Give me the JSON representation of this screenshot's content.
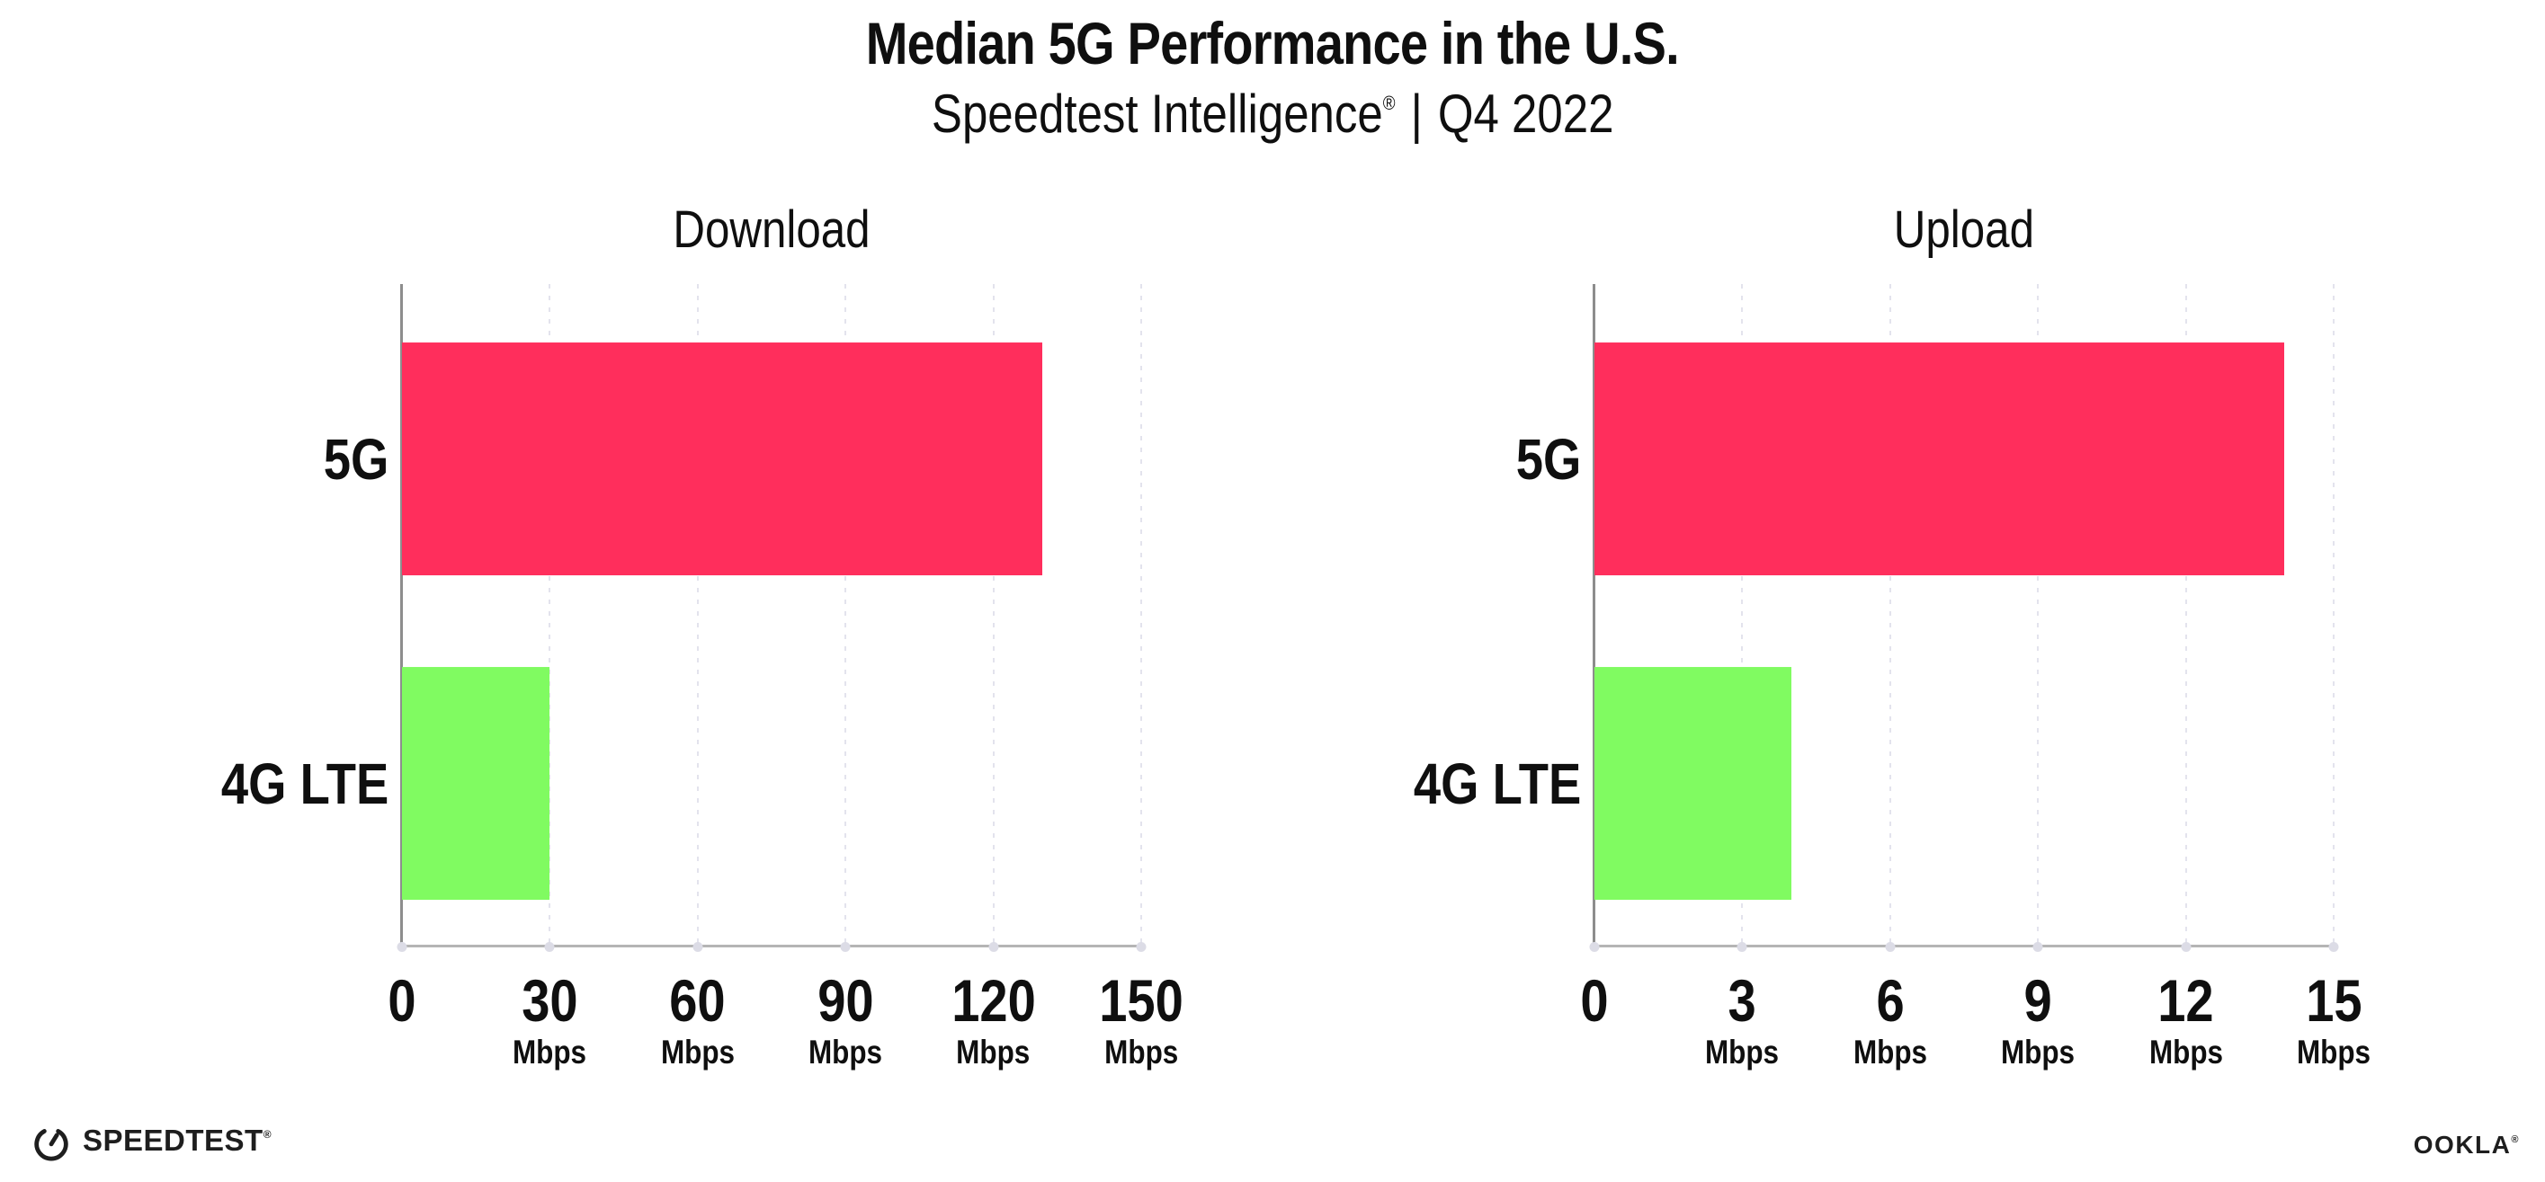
{
  "header": {
    "title": "Median 5G Performance in the U.S.",
    "subtitle": {
      "brand": "Speedtest Intelligence",
      "registered": "®",
      "separator": "|",
      "period": "Q4 2022"
    }
  },
  "chart_data": [
    {
      "type": "bar",
      "orientation": "horizontal",
      "title": "Download",
      "categories": [
        "5G",
        "4G LTE"
      ],
      "values": [
        130,
        30
      ],
      "unit": "Mbps",
      "xlim": [
        0,
        150
      ],
      "xticks": [
        0,
        30,
        60,
        90,
        120,
        150
      ],
      "series_colors": [
        "#FF2E5C",
        "#80FB61"
      ],
      "grid": "dotted-vertical-gridlines",
      "legend": "none"
    },
    {
      "type": "bar",
      "orientation": "horizontal",
      "title": "Upload",
      "categories": [
        "5G",
        "4G LTE"
      ],
      "values": [
        14,
        4
      ],
      "unit": "Mbps",
      "xlim": [
        0,
        15
      ],
      "xticks": [
        0,
        3,
        6,
        9,
        12,
        15
      ],
      "series_colors": [
        "#FF2E5C",
        "#80FB61"
      ],
      "grid": "dotted-vertical-gridlines",
      "legend": "none"
    }
  ],
  "footer": {
    "speedtest_wordmark": "SPEEDTEST",
    "speedtest_registered": "®",
    "ookla_wordmark": "OOKLA",
    "ookla_registered": "®"
  },
  "colors": {
    "bar_5g": "#FF2E5C",
    "bar_4g_lte": "#80FB61",
    "text": "#0F0F0F"
  }
}
